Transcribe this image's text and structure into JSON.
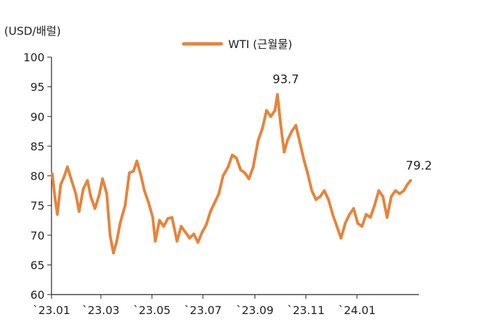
{
  "chart_data": {
    "type": "line",
    "ylabel": "(USD/배럴)",
    "ylim": [
      60,
      100
    ],
    "yticks": [
      60,
      65,
      70,
      75,
      80,
      85,
      90,
      95,
      100
    ],
    "ytick_labels": [
      "60",
      "65",
      "70",
      "75",
      "80",
      "85",
      "90",
      "95",
      "100"
    ],
    "xlim": [
      "2023-01-01",
      "2024-03-15"
    ],
    "xticks": [
      "2023-01-01",
      "2023-03-01",
      "2023-05-01",
      "2023-07-01",
      "2023-09-01",
      "2023-11-01",
      "2024-01-01"
    ],
    "xtick_labels": [
      "`23.01",
      "`23.03",
      "`23.05",
      "`23.07",
      "`23.09",
      "`23.11",
      "`24.01"
    ],
    "legend_position": "top-center",
    "grid": false,
    "series": [
      {
        "name": "WTI (근월물)",
        "color": "#E8833A",
        "x": [
          "2023-01-02",
          "2023-01-05",
          "2023-01-08",
          "2023-01-12",
          "2023-01-16",
          "2023-01-20",
          "2023-01-25",
          "2023-01-30",
          "2023-02-03",
          "2023-02-08",
          "2023-02-13",
          "2023-02-17",
          "2023-02-22",
          "2023-02-27",
          "2023-03-03",
          "2023-03-08",
          "2023-03-12",
          "2023-03-16",
          "2023-03-20",
          "2023-03-24",
          "2023-03-30",
          "2023-04-04",
          "2023-04-09",
          "2023-04-13",
          "2023-04-18",
          "2023-04-22",
          "2023-04-27",
          "2023-05-02",
          "2023-05-05",
          "2023-05-10",
          "2023-05-15",
          "2023-05-20",
          "2023-05-25",
          "2023-05-31",
          "2023-06-05",
          "2023-06-10",
          "2023-06-15",
          "2023-06-20",
          "2023-06-25",
          "2023-06-30",
          "2023-07-05",
          "2023-07-10",
          "2023-07-15",
          "2023-07-20",
          "2023-07-25",
          "2023-07-31",
          "2023-08-05",
          "2023-08-10",
          "2023-08-15",
          "2023-08-20",
          "2023-08-25",
          "2023-08-30",
          "2023-09-05",
          "2023-09-10",
          "2023-09-15",
          "2023-09-20",
          "2023-09-25",
          "2023-09-28",
          "2023-10-02",
          "2023-10-06",
          "2023-10-10",
          "2023-10-15",
          "2023-10-20",
          "2023-10-25",
          "2023-10-30",
          "2023-11-03",
          "2023-11-08",
          "2023-11-13",
          "2023-11-18",
          "2023-11-23",
          "2023-11-28",
          "2023-12-03",
          "2023-12-08",
          "2023-12-13",
          "2023-12-18",
          "2023-12-23",
          "2023-12-28",
          "2024-01-02",
          "2024-01-07",
          "2024-01-12",
          "2024-01-17",
          "2024-01-22",
          "2024-01-27",
          "2024-02-01",
          "2024-02-06",
          "2024-02-11",
          "2024-02-16",
          "2024-02-21",
          "2024-02-26",
          "2024-03-01",
          "2024-03-05"
        ],
        "y": [
          80.3,
          76.5,
          73.5,
          78.5,
          79.8,
          81.5,
          79.2,
          77.0,
          74.0,
          77.8,
          79.2,
          76.5,
          74.5,
          76.8,
          79.5,
          77.0,
          70.0,
          67.0,
          69.0,
          72.0,
          75.0,
          80.5,
          80.8,
          82.5,
          80.0,
          77.5,
          75.5,
          73.0,
          69.0,
          72.5,
          71.5,
          72.8,
          73.0,
          69.0,
          71.5,
          70.5,
          69.5,
          70.2,
          68.8,
          70.5,
          71.8,
          74.0,
          75.5,
          77.0,
          80.0,
          81.5,
          83.5,
          83.0,
          81.0,
          80.5,
          79.5,
          81.5,
          86.0,
          88.0,
          91.0,
          90.0,
          91.0,
          93.7,
          88.5,
          84.0,
          86.0,
          87.5,
          88.5,
          85.5,
          82.5,
          80.5,
          77.5,
          76.0,
          76.5,
          77.5,
          76.0,
          73.5,
          71.5,
          69.5,
          72.0,
          73.5,
          74.5,
          72.0,
          71.5,
          73.5,
          73.0,
          75.0,
          77.5,
          76.5,
          73.0,
          76.5,
          77.5,
          77.0,
          77.5,
          78.5,
          79.2
        ]
      }
    ],
    "annotations": [
      {
        "text": "93.7",
        "x": "2023-09-28",
        "y": 93.7
      },
      {
        "text": "79.2",
        "x": "2024-03-05",
        "y": 79.2
      }
    ]
  }
}
